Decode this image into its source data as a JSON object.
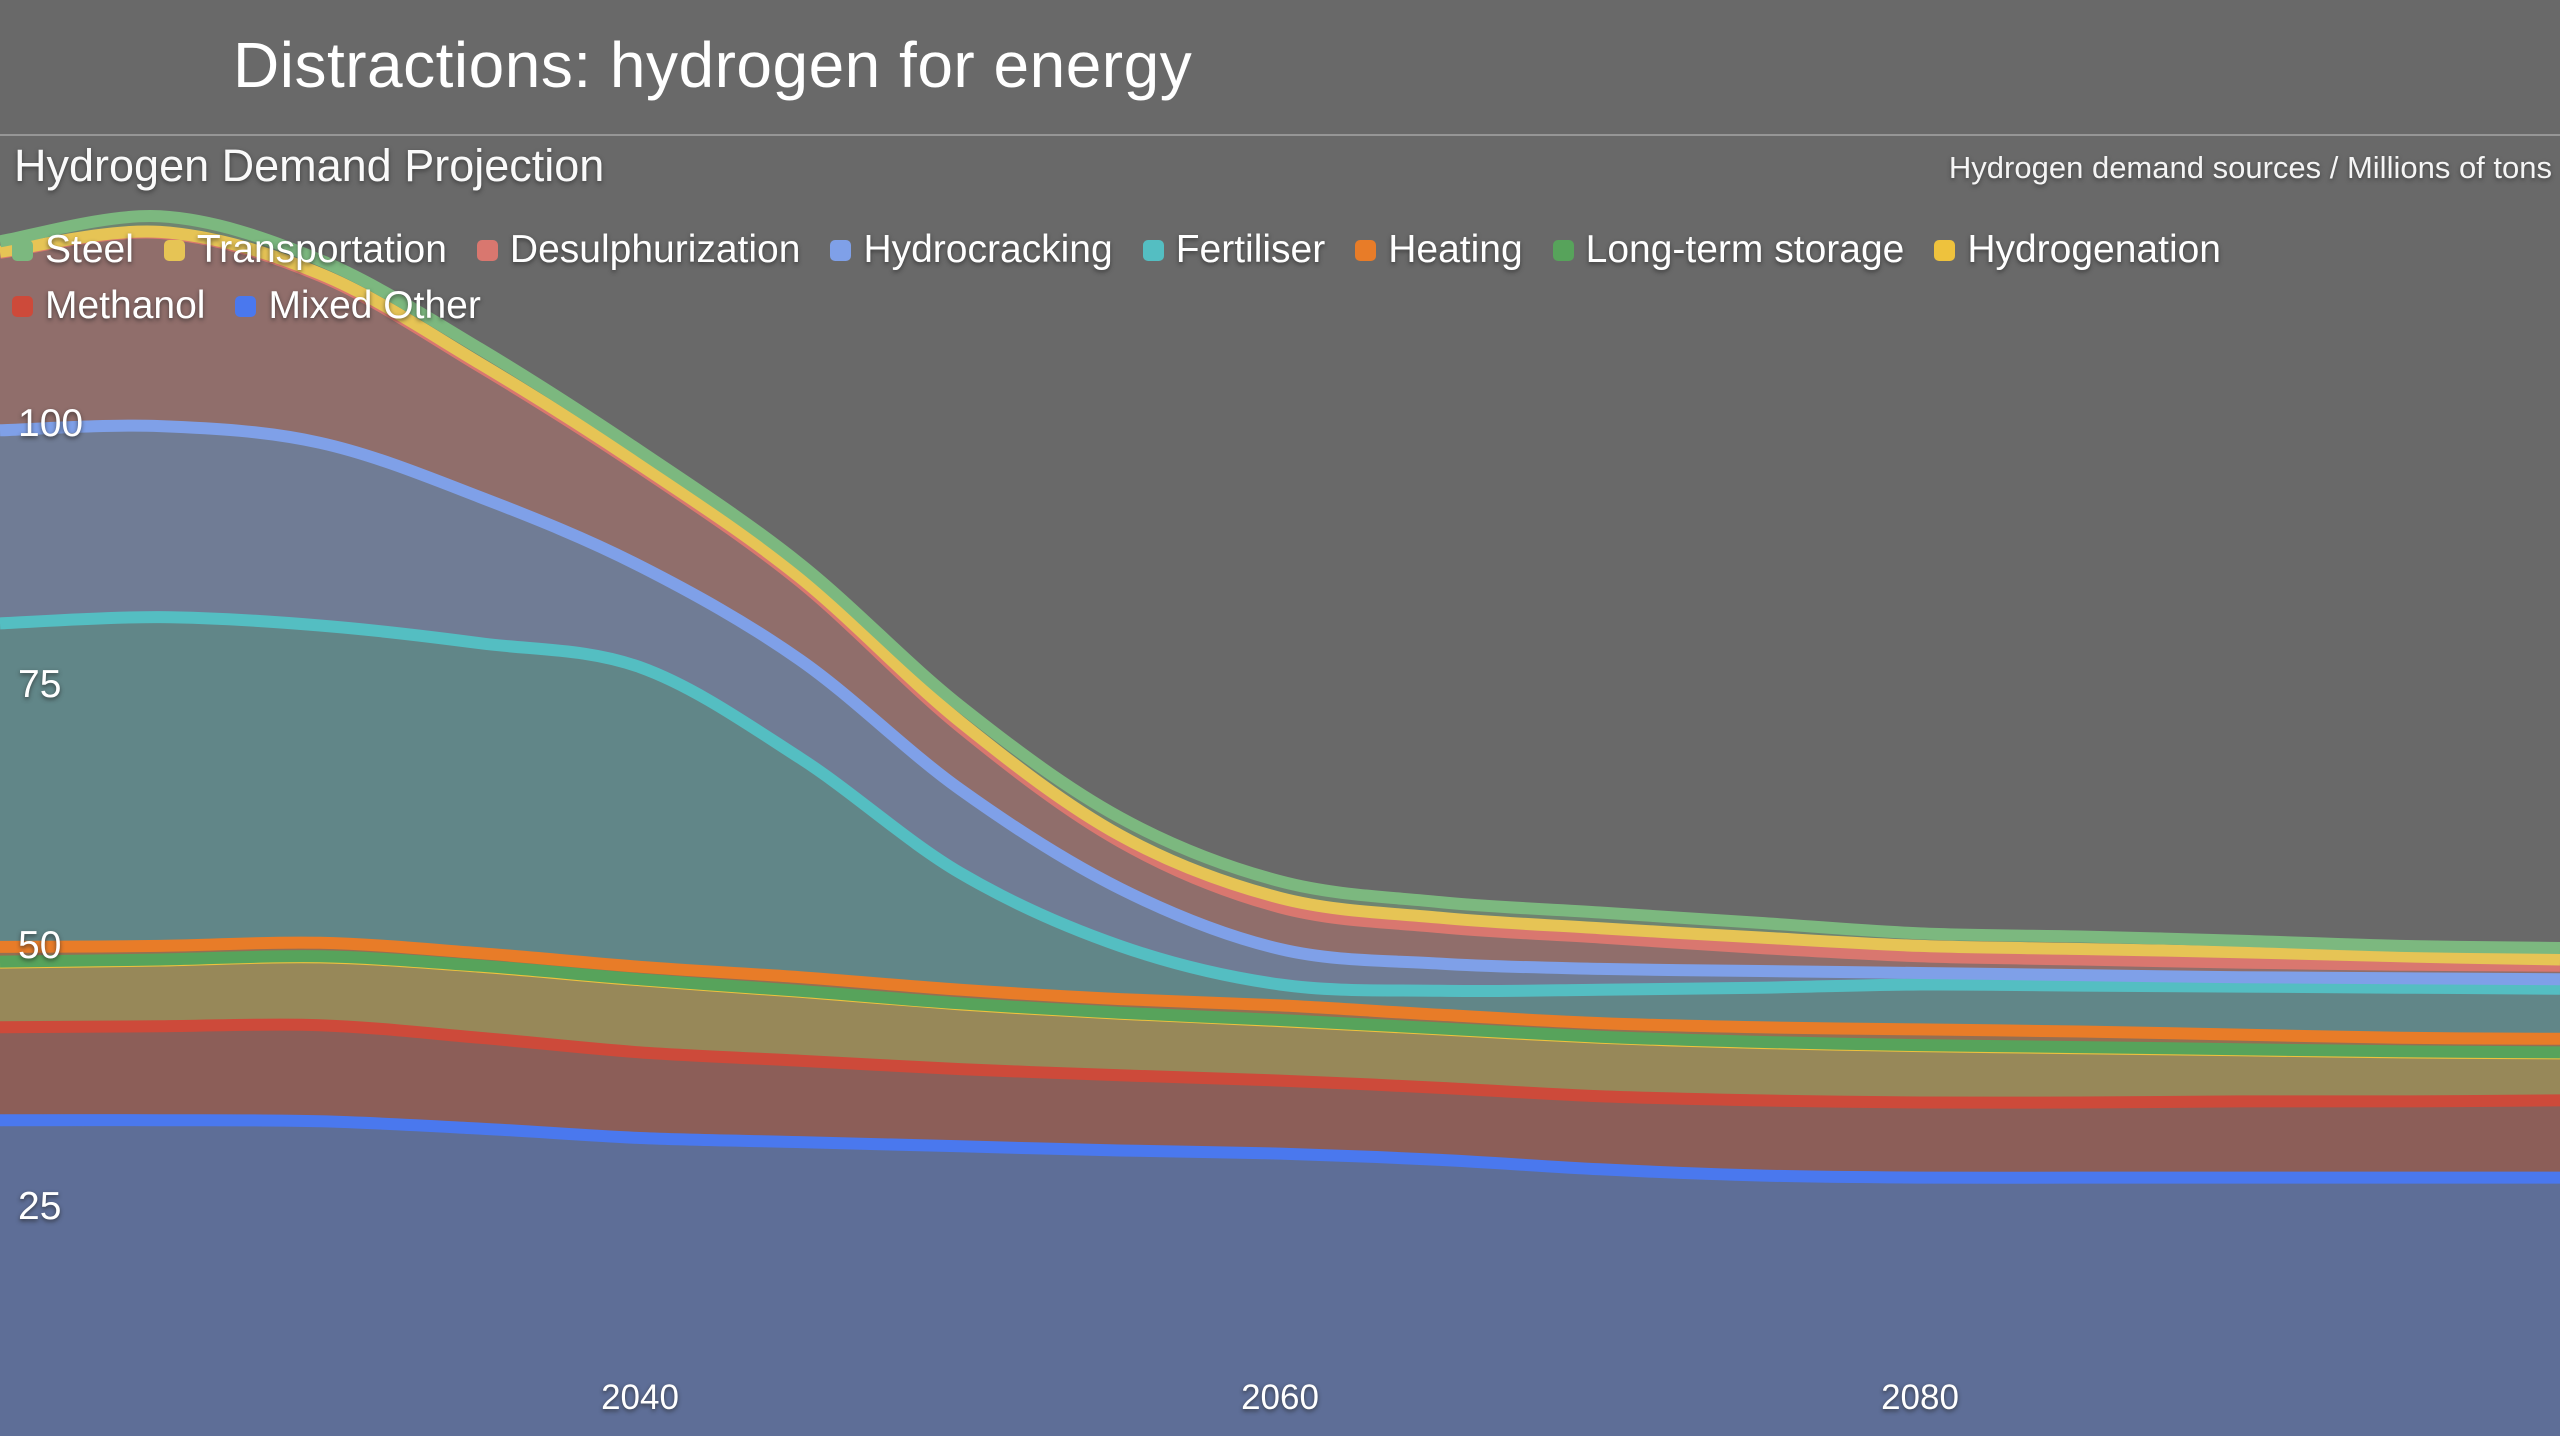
{
  "slide": {
    "title": "Distractions: hydrogen for energy"
  },
  "chart": {
    "title": "Hydrogen Demand Projection",
    "units_label": "Hydrogen demand sources / Millions of tons",
    "background_color": "#696969"
  },
  "chart_data": {
    "type": "area",
    "stacked": true,
    "stack_order": "last-listed-series-at-bottom",
    "title": "Hydrogen Demand Projection",
    "ylabel": "Hydrogen demand sources / Millions of tons",
    "x": [
      2020,
      2025,
      2030,
      2035,
      2040,
      2045,
      2050,
      2055,
      2060,
      2065,
      2070,
      2075,
      2080,
      2085,
      2090,
      2095,
      2100
    ],
    "x_ticks": [
      2040,
      2060,
      2080
    ],
    "y_ticks": [
      25,
      50,
      75,
      100
    ],
    "ylim": [
      0,
      125
    ],
    "grid": false,
    "legend_position": "top",
    "fill_opacity": 0.35,
    "line_width": 12,
    "series": [
      {
        "name": "Steel",
        "color": "#7cb87f",
        "values": [
          1.0,
          1.5,
          1.3,
          1.4,
          1.3,
          1.3,
          1.5,
          1.7,
          1.6,
          1.5,
          1.5,
          1.4,
          1.2,
          1.2,
          1.1,
          1.0,
          1.1
        ]
      },
      {
        "name": "Transportation",
        "color": "#e6c455",
        "values": [
          0.1,
          0.1,
          0.2,
          0.3,
          0.3,
          0.4,
          0.5,
          0.6,
          0.9,
          0.9,
          0.9,
          1.0,
          1.0,
          1.0,
          1.0,
          0.8,
          0.6
        ]
      },
      {
        "name": "Desulphurization",
        "color": "#d9776f",
        "values": [
          17.0,
          18.5,
          16.0,
          12.5,
          9.4,
          7.5,
          6.0,
          4.5,
          4.0,
          3.5,
          3.0,
          2.2,
          1.6,
          1.5,
          1.4,
          1.3,
          1.3
        ]
      },
      {
        "name": "Hydrocracking",
        "color": "#7fa0e8",
        "values": [
          18.5,
          18.3,
          17.5,
          14.0,
          9.7,
          9.4,
          8.0,
          5.5,
          3.4,
          2.6,
          2.0,
          1.6,
          1.1,
          1.0,
          0.9,
          0.9,
          0.9
        ]
      },
      {
        "name": "Fertiliser",
        "color": "#54bec2",
        "values": [
          31.0,
          31.5,
          30.4,
          29.7,
          28.7,
          21.0,
          11.2,
          5.1,
          2.0,
          2.3,
          3.2,
          3.8,
          4.3,
          4.4,
          4.6,
          4.8,
          4.8
        ]
      },
      {
        "name": "Heating",
        "color": "#e87c28",
        "values": [
          1.4,
          1.3,
          1.3,
          1.2,
          1.2,
          1.3,
          1.3,
          1.3,
          1.4,
          1.3,
          1.3,
          1.4,
          1.5,
          1.5,
          1.4,
          1.3,
          1.3
        ]
      },
      {
        "name": "Long-term storage",
        "color": "#57a35b",
        "values": [
          0.1,
          0.1,
          0.1,
          0.1,
          0.1,
          0.1,
          0.1,
          0.1,
          0.1,
          0.1,
          0.1,
          0.1,
          0.1,
          0.1,
          0.1,
          0.1,
          0.1
        ]
      },
      {
        "name": "Hydrogenation",
        "color": "#eec23d",
        "values": [
          6.2,
          6.3,
          6.5,
          6.8,
          6.9,
          6.6,
          6.2,
          5.9,
          5.7,
          5.6,
          5.6,
          5.5,
          5.4,
          5.2,
          4.9,
          4.7,
          4.5
        ]
      },
      {
        "name": "Methanol",
        "color": "#cd4a3a",
        "values": [
          8.9,
          9.0,
          9.2,
          8.7,
          8.2,
          7.8,
          7.4,
          7.2,
          7.0,
          6.9,
          7.0,
          7.2,
          7.2,
          7.2,
          7.3,
          7.3,
          7.4
        ]
      },
      {
        "name": "Mixed Other",
        "color": "#4a78ee",
        "values": [
          33.3,
          33.3,
          33.2,
          32.5,
          31.6,
          31.2,
          30.8,
          30.4,
          30.1,
          29.5,
          28.6,
          28.0,
          27.8,
          27.8,
          27.8,
          27.8,
          27.8
        ]
      }
    ]
  }
}
